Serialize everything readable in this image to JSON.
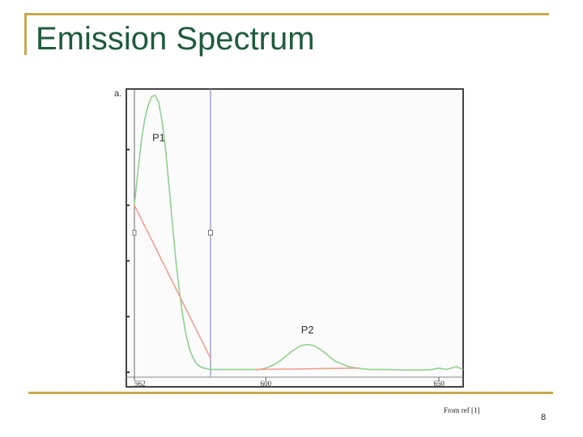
{
  "slide": {
    "title": "Emission Spectrum",
    "source": "From ref [1]",
    "page_number": "8"
  },
  "colors": {
    "title": "#1e5c3a",
    "rule": "#c8a94a",
    "spectrum_curve": "#8fd08f",
    "baseline": "#f0a090",
    "cursor_line": "#9aa8c8"
  },
  "chart_data": {
    "type": "line",
    "title": "",
    "xlabel": "",
    "ylabel": "",
    "panel_label": "a.",
    "xlim": [
      562,
      657
    ],
    "ylim": [
      0,
      1.0
    ],
    "x_ticks": [
      562,
      600,
      650
    ],
    "grid": false,
    "series": [
      {
        "id": "spectrum",
        "color": "#8fd08f",
        "x": [
          562,
          563,
          564,
          565,
          566,
          567,
          568,
          569,
          570,
          571,
          572,
          573,
          574,
          575,
          576,
          577,
          578,
          579,
          580,
          581,
          582,
          584,
          586,
          590,
          594,
          598,
          600,
          602,
          604,
          606,
          608,
          610,
          612,
          614,
          616,
          618,
          620,
          622,
          624,
          626,
          630,
          635,
          640,
          645,
          648,
          650,
          652,
          655,
          657
        ],
        "y": [
          0.6,
          0.72,
          0.83,
          0.91,
          0.96,
          0.99,
          0.995,
          0.97,
          0.9,
          0.8,
          0.67,
          0.53,
          0.4,
          0.29,
          0.2,
          0.13,
          0.08,
          0.05,
          0.03,
          0.02,
          0.015,
          0.01,
          0.01,
          0.01,
          0.01,
          0.01,
          0.015,
          0.025,
          0.04,
          0.06,
          0.08,
          0.095,
          0.1,
          0.095,
          0.08,
          0.06,
          0.04,
          0.03,
          0.02,
          0.015,
          0.01,
          0.01,
          0.008,
          0.008,
          0.01,
          0.015,
          0.01,
          0.02,
          0.01
        ]
      },
      {
        "id": "p1-baseline",
        "color": "#f0a090",
        "x": [
          562,
          584
        ],
        "y": [
          0.6,
          0.05
        ]
      },
      {
        "id": "p2-baseline",
        "color": "#f0a090",
        "x": [
          597,
          627
        ],
        "y": [
          0.01,
          0.015
        ]
      }
    ],
    "vertical_line": {
      "x": 584,
      "color": "#9aa8c8"
    },
    "annotations": [
      {
        "text": "P1",
        "x": 569,
        "y": 0.83
      },
      {
        "text": "P2",
        "x": 612,
        "y": 0.14
      }
    ]
  }
}
